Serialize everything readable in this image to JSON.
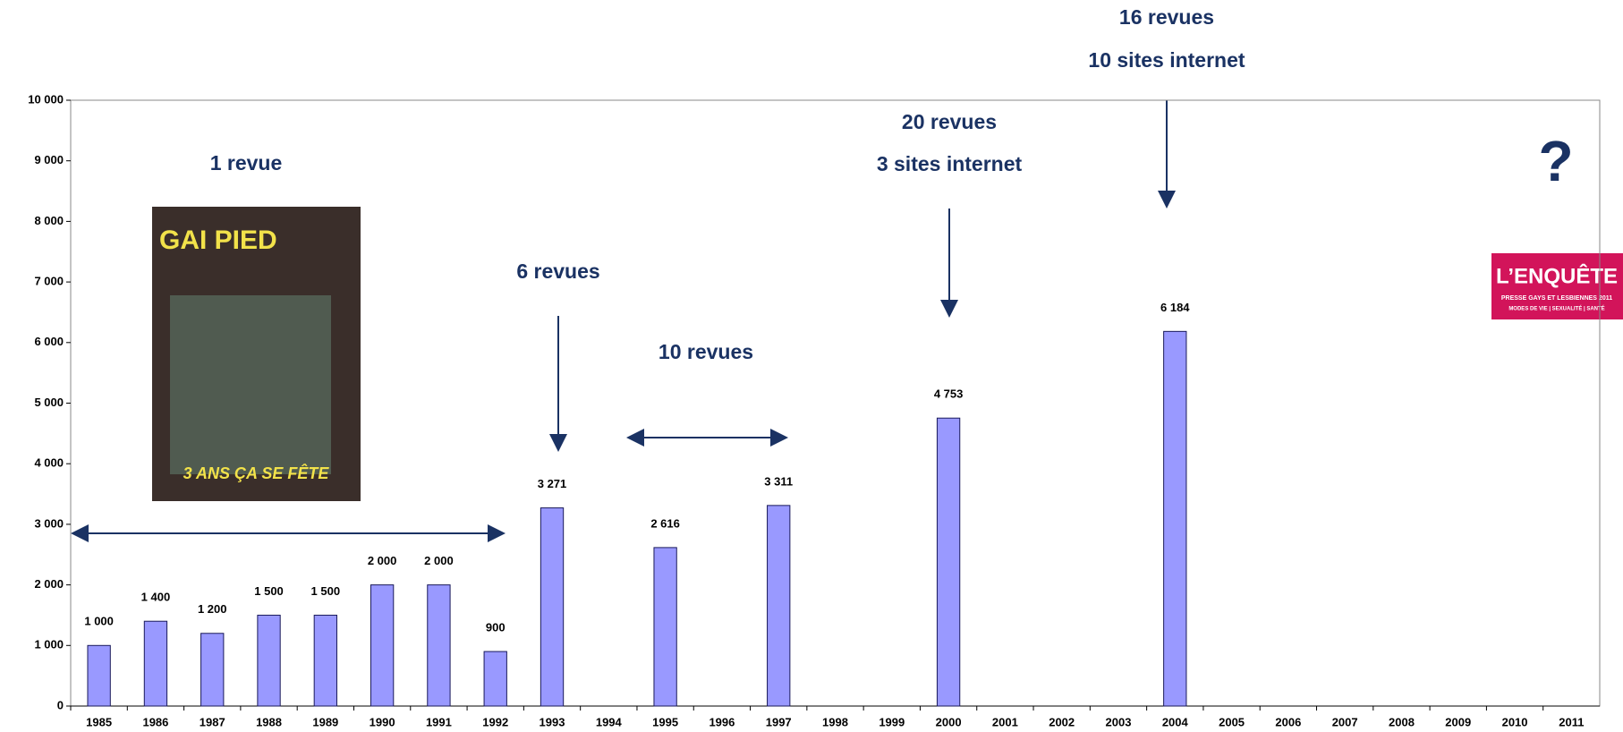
{
  "chart_data": {
    "type": "bar",
    "categories": [
      "1985",
      "1986",
      "1987",
      "1988",
      "1989",
      "1990",
      "1991",
      "1992",
      "1993",
      "1994",
      "1995",
      "1996",
      "1997",
      "1998",
      "1999",
      "2000",
      "2001",
      "2002",
      "2003",
      "2004",
      "2005",
      "2006",
      "2007",
      "2008",
      "2009",
      "2010",
      "2011"
    ],
    "values": [
      1000,
      1400,
      1200,
      1500,
      1500,
      2000,
      2000,
      900,
      3271,
      null,
      2616,
      null,
      3311,
      null,
      null,
      4753,
      null,
      null,
      null,
      6184,
      null,
      null,
      null,
      null,
      null,
      null,
      null
    ],
    "value_labels": [
      "1 000",
      "1 400",
      "1 200",
      "1 500",
      "1 500",
      "2 000",
      "2 000",
      "900",
      "3 271",
      null,
      "2 616",
      null,
      "3 311",
      null,
      null,
      "4 753",
      null,
      null,
      null,
      "6 184",
      null,
      null,
      null,
      null,
      null,
      null,
      null
    ],
    "color": "#9999ff",
    "ylim": [
      0,
      10000
    ],
    "yticks": [
      0,
      {
        "value": 1000,
        "label": "1 000"
      },
      {
        "value": 2000,
        "label": "2 000"
      },
      {
        "value": 3000,
        "label": "3 000"
      },
      {
        "value": 4000,
        "label": "4 000"
      },
      {
        "value": 5000,
        "label": "5 000"
      },
      {
        "value": 6000,
        "label": "6 000"
      },
      {
        "value": 7000,
        "label": "7 000"
      },
      {
        "value": 8000,
        "label": "8 000"
      },
      {
        "value": 9000,
        "label": "9 000"
      },
      {
        "value": 10000,
        "label": "10 000"
      }
    ],
    "annotations": [
      "16 revues",
      "10 sites internet",
      "20 revues",
      "3 sites internet",
      "1 revue",
      "6 revues",
      "10 revues",
      "?"
    ],
    "cover_text": [
      "GAI PIED",
      "3 ANS ÇA SE FÊTE"
    ],
    "logo_text": [
      "L’ENQUÊTE",
      "PRESSE GAYS ET LESBIENNES 2011",
      "MODES DE VIE | SEXUALITÉ | SANTÉ"
    ]
  }
}
